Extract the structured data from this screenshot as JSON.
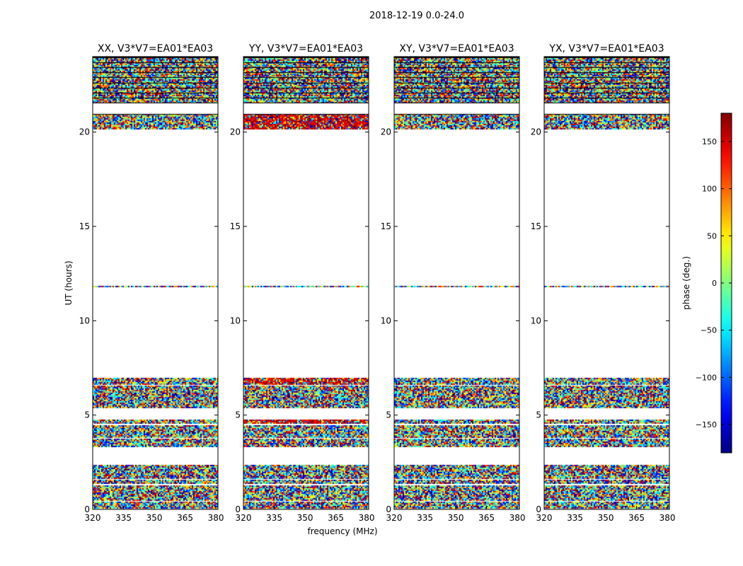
{
  "figure": {
    "suptitle": "2018-12-19 0.0-24.0",
    "ylabel": "UT (hours)",
    "xlabel": "frequency (MHz)"
  },
  "chart_data": {
    "type": "heatmap",
    "x_range": [
      320,
      381
    ],
    "y_range": [
      0,
      24
    ],
    "x_ticks": [
      "320",
      "335",
      "350",
      "365",
      "380"
    ],
    "x_tick_values": [
      320,
      335,
      350,
      365,
      380
    ],
    "y_ticks": [
      "0",
      "5",
      "10",
      "15",
      "20"
    ],
    "y_tick_values": [
      0,
      5,
      10,
      15,
      20
    ],
    "panels": [
      {
        "title": "XX, V3*V7=EA01*EA03",
        "bias_phase": 0
      },
      {
        "title": "YY, V3*V7=EA01*EA03",
        "bias_phase": 150
      },
      {
        "title": "XY, V3*V7=EA01*EA03",
        "bias_phase": 0
      },
      {
        "title": "YX, V3*V7=EA01*EA03",
        "bias_phase": 0
      }
    ],
    "data_bands_hours": [
      [
        0.05,
        0.4
      ],
      [
        0.5,
        1.25
      ],
      [
        1.35,
        1.55
      ],
      [
        1.65,
        2.35
      ],
      [
        3.35,
        3.75
      ],
      [
        3.85,
        4.45
      ],
      [
        4.55,
        4.75
      ],
      [
        5.4,
        6.55
      ],
      [
        6.65,
        6.95
      ],
      [
        11.8,
        11.85
      ],
      [
        20.15,
        20.95
      ],
      [
        21.55,
        24.0
      ]
    ],
    "colorbar": {
      "label": "phase (deg.)",
      "range": [
        -180,
        180
      ],
      "ticks": [
        "150",
        "100",
        "50",
        "0",
        "−50",
        "−100",
        "−150"
      ],
      "tick_values": [
        150,
        100,
        50,
        0,
        -50,
        -100,
        -150
      ],
      "colormap": "jet"
    }
  }
}
